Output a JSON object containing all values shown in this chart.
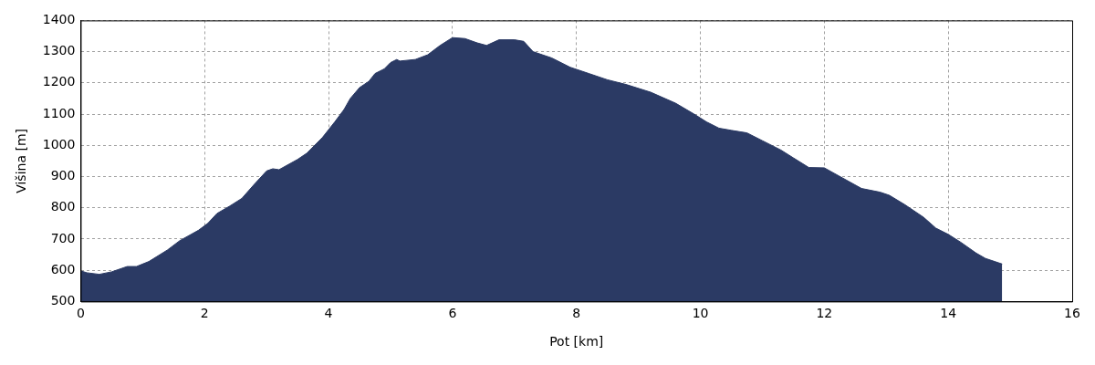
{
  "chart_data": {
    "type": "area",
    "xlabel": "Pot [km]",
    "ylabel": "Višina [m]",
    "x": [
      0,
      0.1,
      0.3,
      0.5,
      0.75,
      0.9,
      1.1,
      1.4,
      1.6,
      1.9,
      2.05,
      2.2,
      2.4,
      2.6,
      2.8,
      3.0,
      3.1,
      3.2,
      3.5,
      3.65,
      3.9,
      4.1,
      4.25,
      4.35,
      4.5,
      4.65,
      4.75,
      4.9,
      5.0,
      5.1,
      5.15,
      5.4,
      5.6,
      5.8,
      6.0,
      6.2,
      6.4,
      6.55,
      6.75,
      7.0,
      7.15,
      7.3,
      7.6,
      7.9,
      8.2,
      8.5,
      8.8,
      9.2,
      9.6,
      9.9,
      10.1,
      10.3,
      10.5,
      10.75,
      11.0,
      11.3,
      11.5,
      11.75,
      12.0,
      12.3,
      12.6,
      12.9,
      13.05,
      13.3,
      13.6,
      13.8,
      14.0,
      14.2,
      14.45,
      14.6,
      14.75,
      14.87
    ],
    "series": [
      {
        "color": "#2b3a64",
        "values": [
          598,
          592,
          587,
          595,
          612,
          612,
          628,
          665,
          695,
          728,
          750,
          782,
          805,
          830,
          875,
          918,
          925,
          922,
          955,
          975,
          1025,
          1075,
          1115,
          1150,
          1185,
          1205,
          1230,
          1245,
          1265,
          1275,
          1270,
          1275,
          1290,
          1320,
          1345,
          1342,
          1328,
          1320,
          1338,
          1338,
          1333,
          1300,
          1280,
          1250,
          1230,
          1210,
          1195,
          1170,
          1135,
          1100,
          1075,
          1055,
          1048,
          1040,
          1015,
          985,
          960,
          929,
          928,
          895,
          862,
          850,
          840,
          810,
          770,
          735,
          715,
          690,
          655,
          638,
          628,
          620
        ]
      }
    ],
    "xlim": [
      0,
      16
    ],
    "xticks": [
      0,
      2,
      4,
      6,
      8,
      10,
      12,
      14,
      16
    ],
    "ylim": [
      500,
      1400
    ],
    "yticks": [
      500,
      600,
      700,
      800,
      900,
      1000,
      1100,
      1200,
      1300,
      1400
    ],
    "grid": true,
    "legend": false
  }
}
